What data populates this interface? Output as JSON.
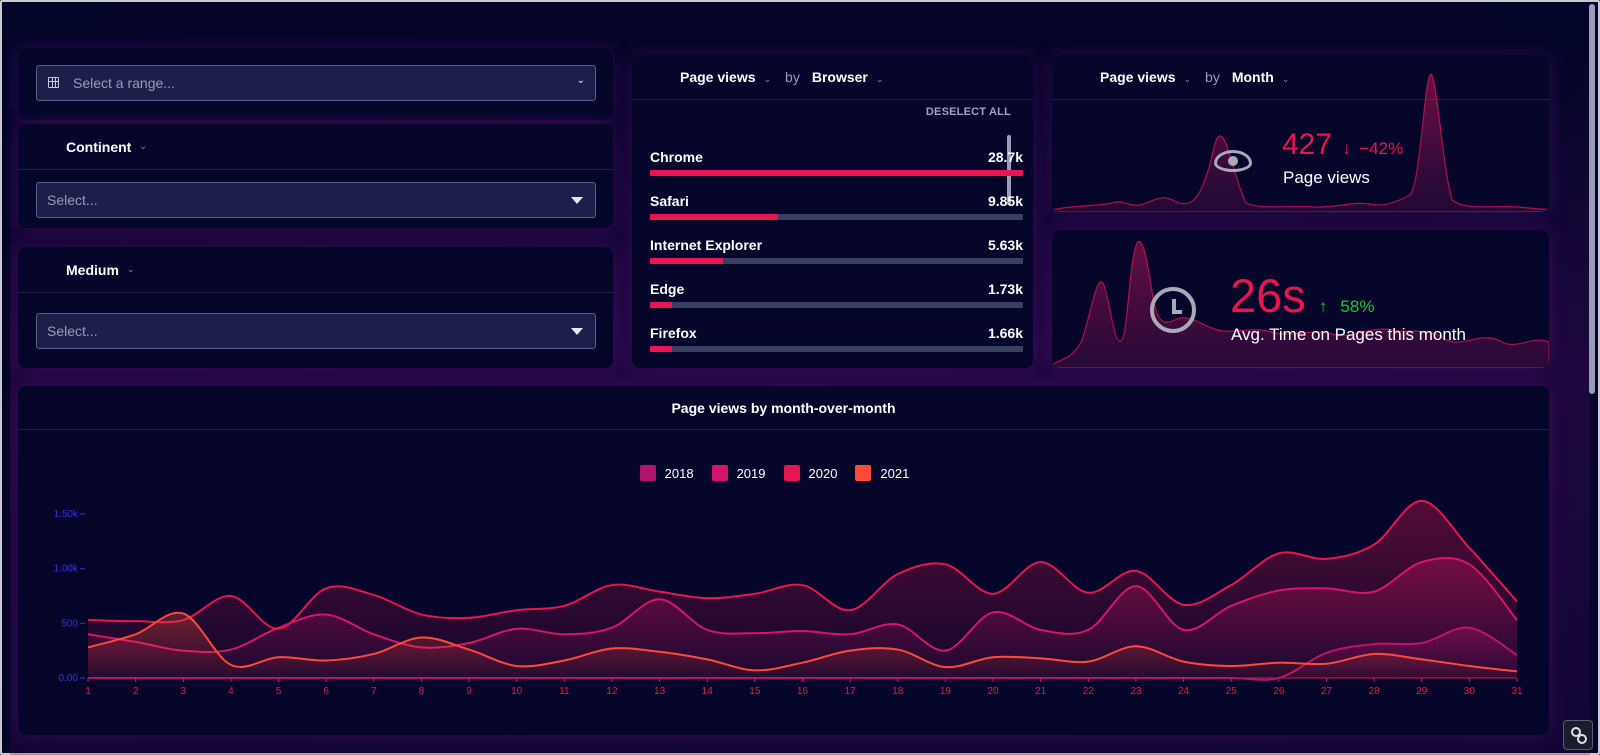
{
  "filters": {
    "range_placeholder": "Select a range...",
    "continent": {
      "label": "Continent",
      "placeholder": "Select..."
    },
    "medium": {
      "label": "Medium",
      "placeholder": "Select..."
    }
  },
  "browser_panel": {
    "metric": "Page views",
    "by": "by",
    "dimension": "Browser",
    "deselect_all": "DESELECT ALL",
    "rows": [
      {
        "name": "Chrome",
        "value": "28.7k",
        "fraction": 1.0
      },
      {
        "name": "Safari",
        "value": "9.85k",
        "fraction": 0.343
      },
      {
        "name": "Internet Explorer",
        "value": "5.63k",
        "fraction": 0.196
      },
      {
        "name": "Edge",
        "value": "1.73k",
        "fraction": 0.06
      },
      {
        "name": "Firefox",
        "value": "1.66k",
        "fraction": 0.058
      }
    ]
  },
  "month_panel": {
    "metric": "Page views",
    "by": "by",
    "dimension": "Month",
    "kpi_value": "427",
    "kpi_change": "−42%",
    "kpi_label": "Page views",
    "icon": "eye-icon"
  },
  "time_panel": {
    "kpi_value": "26s",
    "kpi_change": "58%",
    "kpi_label": "Avg. Time on Pages this month",
    "icon": "clock-icon"
  },
  "colors": {
    "accent": "#e8154f",
    "down": "#e8154f",
    "up": "#22c33b",
    "background": "#03052a"
  },
  "chart_data": {
    "type": "area",
    "title": "Page views by month-over-month",
    "x": [
      1,
      2,
      3,
      4,
      5,
      6,
      7,
      8,
      9,
      10,
      11,
      12,
      13,
      14,
      15,
      16,
      17,
      18,
      19,
      20,
      21,
      22,
      23,
      24,
      25,
      26,
      27,
      28,
      29,
      30,
      31
    ],
    "y_ticks": [
      "0.00",
      "500",
      "1.00k",
      "1.50k"
    ],
    "ylim": [
      0,
      1650
    ],
    "legend_position": "top-center",
    "series": [
      {
        "name": "2018",
        "color": "#b0146e",
        "values": [
          0,
          0,
          0,
          0,
          0,
          0,
          0,
          0,
          0,
          0,
          0,
          0,
          0,
          0,
          0,
          0,
          0,
          0,
          0,
          0,
          0,
          0,
          0,
          0,
          0,
          0,
          230,
          310,
          320,
          460,
          210
        ]
      },
      {
        "name": "2019",
        "color": "#d4156a",
        "values": [
          400,
          330,
          250,
          260,
          460,
          580,
          400,
          280,
          320,
          450,
          400,
          460,
          720,
          440,
          410,
          430,
          400,
          490,
          250,
          600,
          440,
          440,
          840,
          440,
          660,
          800,
          820,
          790,
          1060,
          1040,
          530
        ]
      },
      {
        "name": "2020",
        "color": "#e8154f",
        "values": [
          530,
          520,
          530,
          750,
          450,
          820,
          760,
          580,
          550,
          620,
          660,
          850,
          790,
          730,
          770,
          850,
          620,
          950,
          1040,
          770,
          1060,
          780,
          980,
          670,
          850,
          1140,
          1090,
          1220,
          1620,
          1190,
          700
        ]
      },
      {
        "name": "2021",
        "color": "#ff4a38",
        "values": [
          280,
          400,
          590,
          120,
          190,
          160,
          220,
          370,
          260,
          110,
          160,
          270,
          240,
          170,
          70,
          140,
          250,
          260,
          100,
          190,
          180,
          150,
          290,
          150,
          110,
          140,
          130,
          220,
          170,
          110,
          60
        ]
      }
    ]
  },
  "corner_button_icon": "link-icon"
}
